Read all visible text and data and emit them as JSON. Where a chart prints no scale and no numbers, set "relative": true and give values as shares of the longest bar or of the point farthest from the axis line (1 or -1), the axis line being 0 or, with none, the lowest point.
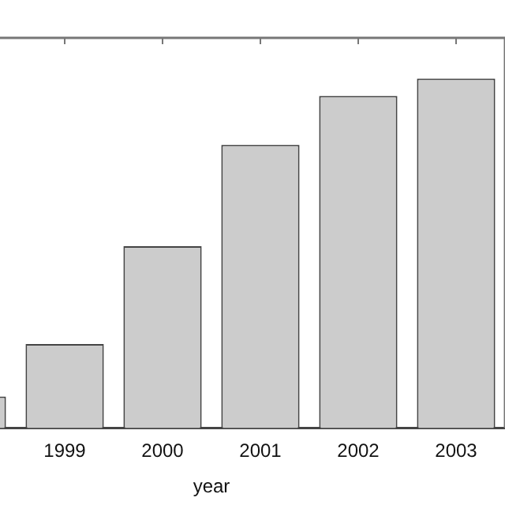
{
  "chart_data": {
    "type": "bar",
    "xlabel": "year",
    "categories": [
      null,
      "1999",
      "2000",
      "2001",
      "2002",
      "2003"
    ],
    "values": [
      0.09,
      0.24,
      0.52,
      0.81,
      0.95,
      1
    ],
    "color": "#cccccc",
    "relative": true,
    "grid": false,
    "legend": false
  }
}
